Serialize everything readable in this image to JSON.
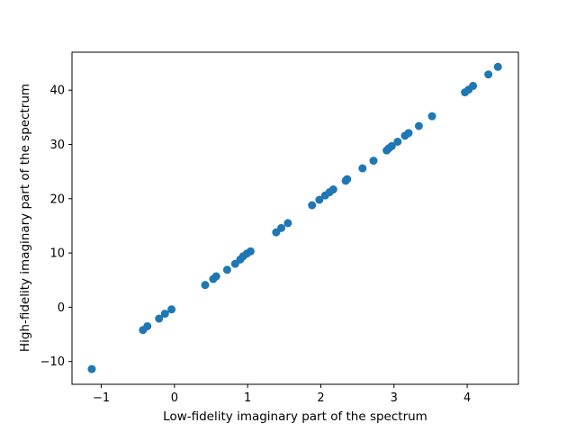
{
  "chart_data": {
    "type": "scatter",
    "title": "",
    "xlabel": "Low-fidelity imaginary part of the spectrum",
    "ylabel": "High-fidelity imaginary part of the spectrum",
    "xlim": [
      -1.4,
      4.7
    ],
    "ylim": [
      -14.2,
      47.0
    ],
    "grid": false,
    "xticks": [
      -1,
      0,
      1,
      2,
      3,
      4
    ],
    "yticks": [
      -10,
      0,
      10,
      20,
      30,
      40
    ],
    "color": "#1f77b4",
    "x": [
      -1.13,
      -0.43,
      -0.37,
      -0.21,
      -0.13,
      -0.04,
      0.42,
      0.53,
      0.57,
      0.72,
      0.83,
      0.9,
      0.94,
      0.99,
      1.04,
      1.39,
      1.46,
      1.55,
      1.88,
      1.98,
      2.06,
      2.12,
      2.17,
      2.34,
      2.36,
      2.57,
      2.72,
      2.9,
      2.93,
      2.97,
      3.05,
      3.15,
      3.2,
      3.34,
      3.52,
      3.97,
      4.02,
      4.08,
      4.29,
      4.42
    ],
    "y": [
      -11.4,
      -4.2,
      -3.5,
      -2.1,
      -1.2,
      -0.4,
      4.1,
      5.2,
      5.7,
      6.9,
      8.0,
      8.8,
      9.4,
      9.9,
      10.3,
      13.8,
      14.6,
      15.5,
      18.8,
      19.8,
      20.6,
      21.2,
      21.7,
      23.3,
      23.6,
      25.6,
      27.0,
      28.9,
      29.3,
      29.7,
      30.5,
      31.6,
      32.1,
      33.4,
      35.2,
      39.6,
      40.1,
      40.8,
      42.9,
      44.3
    ]
  }
}
